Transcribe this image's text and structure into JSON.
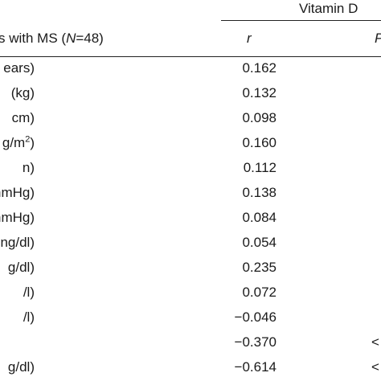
{
  "header": {
    "group": "Vitamin D",
    "subject": "s with MS (",
    "n_symbol": "N",
    "n_value": "=48)",
    "r_label": "r",
    "p_label": "P"
  },
  "rows": [
    {
      "label": "ears)",
      "value": "0.162",
      "p": ""
    },
    {
      "label": " (kg)",
      "value": "0.132",
      "p": ""
    },
    {
      "label": "cm)",
      "value": "0.098",
      "p": ""
    },
    {
      "label": "g/m",
      "label_sup": "2",
      "label_end": ")",
      "value": "0.160",
      "p": ""
    },
    {
      "label": "n)",
      "value": "0.112",
      "p": ""
    },
    {
      "label": "mmHg)",
      "value": "0.138",
      "p": ""
    },
    {
      "label": "mmHg)",
      "value": "0.084",
      "p": ""
    },
    {
      "label": "ng/dl)",
      "value": "0.054",
      "p": ""
    },
    {
      "label": "g/dl)",
      "value": "0.235",
      "p": ""
    },
    {
      "label": "/l)",
      "value": "0.072",
      "p": ""
    },
    {
      "label": "/l)",
      "value": "−0.046",
      "p": ""
    },
    {
      "label": "",
      "value": "−0.370",
      "p": "<"
    },
    {
      "label": "g/dl)",
      "value": "−0.614",
      "p": "<"
    }
  ]
}
